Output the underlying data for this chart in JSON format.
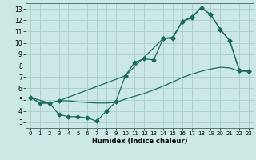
{
  "title": "",
  "xlabel": "Humidex (Indice chaleur)",
  "bg_color": "#cce8e4",
  "grid_color": "#aaccca",
  "line_color": "#1a6b5a",
  "xlim": [
    -0.5,
    23.5
  ],
  "ylim": [
    2.5,
    13.5
  ],
  "xticks": [
    0,
    1,
    2,
    3,
    4,
    5,
    6,
    7,
    8,
    9,
    10,
    11,
    12,
    13,
    14,
    15,
    16,
    17,
    18,
    19,
    20,
    21,
    22,
    23
  ],
  "yticks": [
    3,
    4,
    5,
    6,
    7,
    8,
    9,
    10,
    11,
    12,
    13
  ],
  "series1_x": [
    0,
    1,
    2,
    3,
    4,
    5,
    6,
    7,
    8,
    9,
    10,
    11,
    12,
    13,
    14,
    15,
    16,
    17,
    18,
    19,
    20,
    21,
    22,
    23
  ],
  "series1_y": [
    5.2,
    4.7,
    4.7,
    4.9,
    4.9,
    4.8,
    4.75,
    4.7,
    4.7,
    4.75,
    5.05,
    5.3,
    5.55,
    5.85,
    6.2,
    6.55,
    6.95,
    7.25,
    7.5,
    7.7,
    7.85,
    7.8,
    7.5,
    7.5
  ],
  "series2_x": [
    0,
    1,
    2,
    3,
    4,
    5,
    6,
    7,
    8,
    9,
    10,
    11,
    12,
    13,
    14,
    15,
    16,
    17,
    18,
    19,
    20,
    21,
    22,
    23
  ],
  "series2_y": [
    5.2,
    4.7,
    4.7,
    3.7,
    3.5,
    3.5,
    3.4,
    3.1,
    4.0,
    4.8,
    7.1,
    8.3,
    8.6,
    8.5,
    10.4,
    10.4,
    11.9,
    12.2,
    13.1,
    12.5,
    11.2,
    10.2,
    7.6,
    7.5
  ],
  "series3_x": [
    0,
    2,
    3,
    10,
    14,
    15,
    16,
    17,
    18,
    19,
    20,
    21,
    22,
    23
  ],
  "series3_y": [
    5.2,
    4.7,
    4.9,
    7.1,
    10.4,
    10.5,
    11.9,
    12.3,
    13.1,
    12.5,
    11.2,
    10.2,
    7.6,
    7.5
  ],
  "marker_size": 2.5,
  "line_width": 0.9,
  "xlabel_fontsize": 6.0,
  "tick_fontsize": 5.0
}
